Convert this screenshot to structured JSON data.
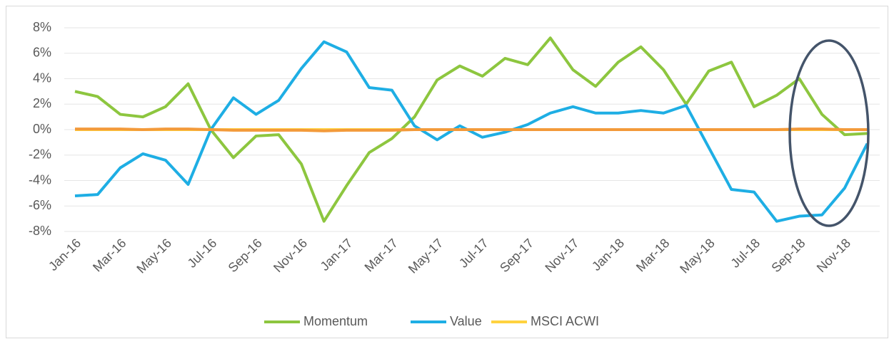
{
  "chart_data": {
    "type": "line",
    "categories": [
      "Jan-16",
      null,
      "Mar-16",
      null,
      "May-16",
      null,
      "Jul-16",
      null,
      "Sep-16",
      null,
      "Nov-16",
      null,
      "Jan-17",
      null,
      "Mar-17",
      null,
      "May-17",
      null,
      "Jul-17",
      null,
      "Sep-17",
      null,
      "Nov-17",
      null,
      "Jan-18",
      null,
      "Mar-18",
      null,
      "May-18",
      null,
      "Jul-18",
      null,
      "Sep-18",
      null,
      "Nov-18",
      null
    ],
    "series": [
      {
        "name": "Momentum",
        "color": "#8dc63f",
        "values": [
          3.0,
          2.6,
          1.2,
          1.0,
          1.8,
          3.6,
          0.0,
          -2.2,
          -0.5,
          -0.4,
          -2.7,
          -7.2,
          -4.4,
          -1.8,
          -0.7,
          1.0,
          3.9,
          5.0,
          4.2,
          5.6,
          5.1,
          7.2,
          4.7,
          3.4,
          5.3,
          6.5,
          4.7,
          2.0,
          4.6,
          5.3,
          1.8,
          2.7,
          4.0,
          1.2,
          -0.4,
          -0.3
        ]
      },
      {
        "name": "Value",
        "color": "#1eaee4",
        "values": [
          -5.2,
          -5.1,
          -3.0,
          -1.9,
          -2.4,
          -4.3,
          0.0,
          2.5,
          1.2,
          2.3,
          4.8,
          6.9,
          6.1,
          3.3,
          3.1,
          0.3,
          -0.8,
          0.3,
          -0.6,
          -0.2,
          0.4,
          1.3,
          1.8,
          1.3,
          1.3,
          1.5,
          1.3,
          1.9,
          -1.4,
          -4.7,
          -4.9,
          -7.2,
          -6.8,
          -6.7,
          -4.6,
          -1.1
        ]
      },
      {
        "name": "MSCI ACWI",
        "color": "#ffd23f",
        "values": [
          0,
          0,
          0,
          0,
          0,
          0,
          0,
          0,
          0,
          0,
          0,
          0,
          0,
          0,
          0,
          0,
          0,
          0,
          0,
          0,
          0,
          0,
          0,
          0,
          0,
          0,
          0,
          0,
          0,
          0,
          0,
          0,
          0,
          0,
          0,
          0
        ]
      },
      {
        "color": "#f39a3a",
        "values": [
          0.05,
          0.05,
          0.05,
          0,
          0.05,
          0.05,
          0,
          -0.05,
          -0.05,
          -0.05,
          -0.05,
          -0.1,
          -0.05,
          -0.05,
          -0.05,
          0,
          0,
          0,
          0,
          0,
          0,
          0,
          0,
          0,
          0,
          0,
          0,
          0,
          0,
          0,
          0,
          0,
          0.05,
          0.05,
          0,
          0
        ]
      }
    ],
    "ylim": [
      -8,
      8
    ],
    "yticks": [
      {
        "value": -8,
        "label": "-8%"
      },
      {
        "value": -6,
        "label": "-6%"
      },
      {
        "value": -4,
        "label": "-4%"
      },
      {
        "value": -2,
        "label": "-2%"
      },
      {
        "value": 0,
        "label": "0%"
      },
      {
        "value": 2,
        "label": "2%"
      },
      {
        "value": 4,
        "label": "4%"
      },
      {
        "value": 6,
        "label": "6%"
      },
      {
        "value": 8,
        "label": "8%"
      }
    ],
    "grid": true
  }
}
